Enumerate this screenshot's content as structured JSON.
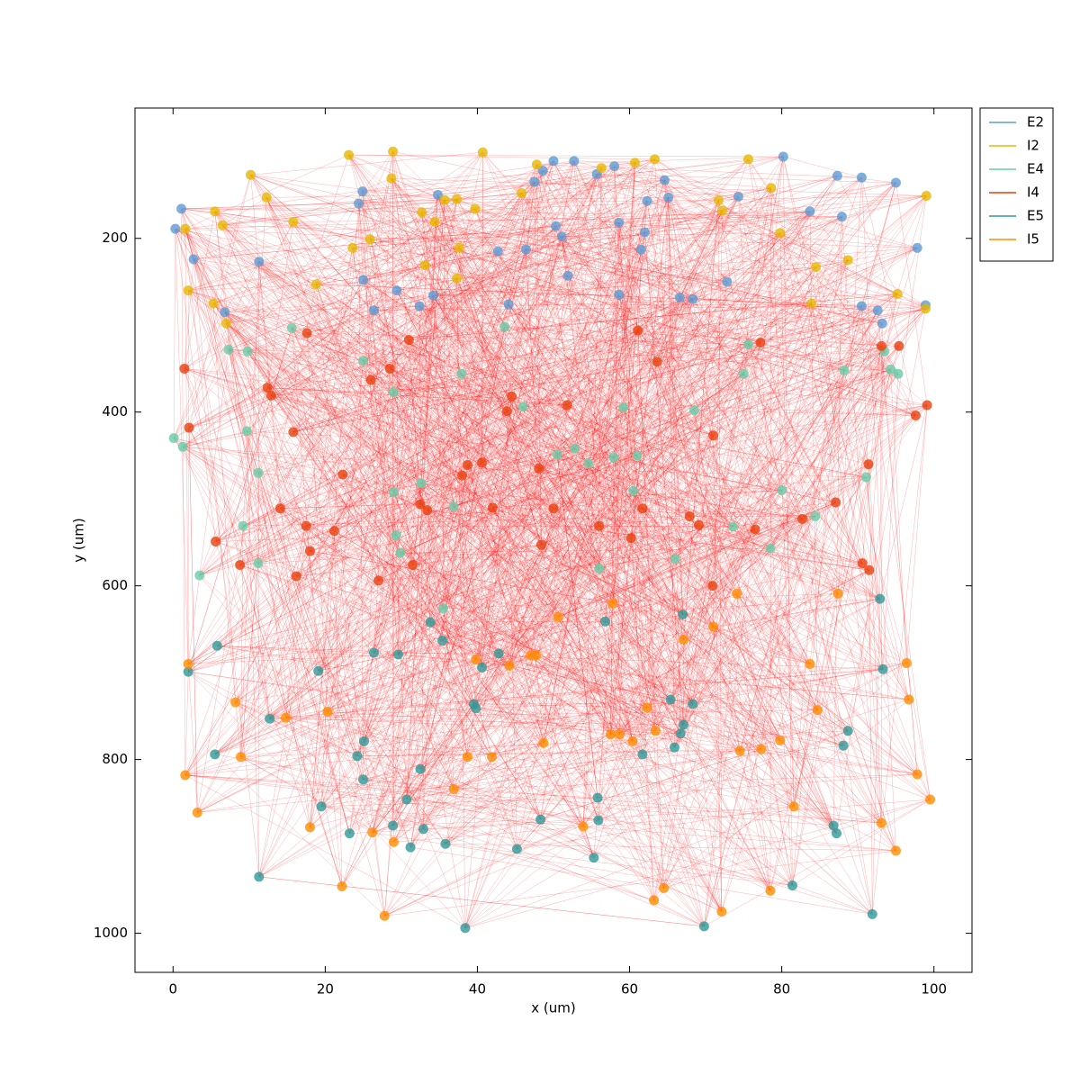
{
  "chart_data": {
    "type": "scatter",
    "xlabel": "x (um)",
    "ylabel": "y (um)",
    "xlim": [
      -5,
      105
    ],
    "ylim": [
      1045,
      50
    ],
    "xticks": [
      0,
      20,
      40,
      60,
      80,
      100
    ],
    "yticks": [
      200,
      400,
      600,
      800,
      1000
    ],
    "legend": "right",
    "connection_color": "#ff0000",
    "series": [
      {
        "name": "E2",
        "color": "#5b9bd5",
        "x": [
          0.3,
          1.1,
          2.7,
          6.8,
          11.3,
          24.9,
          24.4,
          25,
          26.4,
          29.4,
          32.4,
          34.2,
          34.8,
          42.7,
          44.1,
          46.4,
          47.5,
          48.6,
          50,
          50.3,
          51.1,
          51.9,
          52.7,
          55.7,
          58,
          58.6,
          58.6,
          61.5,
          62,
          62.3,
          64.6,
          65.1,
          66.6,
          68.3,
          72.8,
          74.3,
          80.2,
          83.7,
          87.3,
          87.9,
          90.5,
          90.5,
          92.6,
          93.2,
          95,
          97.8,
          98.9
        ],
        "values": [
          189,
          166,
          224,
          285,
          227,
          146,
          160,
          248,
          283,
          260,
          278,
          266,
          150,
          215,
          276,
          213,
          135,
          122,
          111,
          186,
          198,
          243,
          111,
          126,
          117,
          182,
          265,
          213,
          193,
          157,
          133,
          153,
          268,
          270,
          250,
          152,
          106,
          169,
          128,
          175,
          130,
          278,
          283,
          298,
          136,
          211,
          277
        ]
      },
      {
        "name": "I2",
        "color": "#e6b800",
        "x": [
          1.6,
          2,
          5.5,
          6.5,
          10.2,
          12.3,
          15.8,
          23.1,
          23.6,
          25.9,
          28.7,
          28.9,
          32.7,
          34.4,
          35.7,
          37.3,
          37.6,
          39.7,
          40.7,
          45.8,
          47.8,
          56.3,
          60.7,
          63.3,
          71.7,
          72.2,
          75.6,
          78.6,
          79.8,
          83.9,
          84.5,
          88.7,
          95.2,
          99,
          98.9,
          5.3,
          7,
          18.8,
          33.1,
          37.3
        ],
        "values": [
          189,
          260,
          169,
          185,
          127,
          153,
          181,
          104,
          211,
          201,
          131,
          100,
          170,
          181,
          156,
          155,
          211,
          166,
          101,
          148,
          115,
          119,
          113,
          109,
          156,
          168,
          109,
          142,
          194,
          275,
          233,
          225,
          264,
          151,
          281,
          275,
          298,
          253,
          231,
          246
        ]
      },
      {
        "name": "E4",
        "color": "#66cdaa",
        "x": [
          0.1,
          1.3,
          3.5,
          7.3,
          9.2,
          9.8,
          9.7,
          11.2,
          11.2,
          15.6,
          25,
          29,
          29,
          29.3,
          29.9,
          32.6,
          35.5,
          36.9,
          37.9,
          43.6,
          46,
          50.5,
          52.8,
          54.6,
          56,
          57.9,
          59.2,
          60.5,
          61,
          66,
          68.5,
          73.6,
          75,
          75.6,
          78.5,
          80,
          84.4,
          88.2,
          91.1,
          93.5,
          94.3,
          95.3
        ],
        "values": [
          430,
          440,
          588,
          328,
          531,
          330,
          422,
          470,
          574,
          303,
          341,
          377,
          492,
          542,
          562,
          482,
          626,
          509,
          356,
          302,
          394,
          449,
          442,
          459,
          580,
          452,
          395,
          491,
          450,
          569,
          398,
          532,
          356,
          322,
          557,
          490,
          520,
          352,
          475,
          330,
          351,
          356
        ]
      },
      {
        "name": "I4",
        "color": "#e8400c",
        "x": [
          1.5,
          2.1,
          5.6,
          8.8,
          12.4,
          12.9,
          14.1,
          15.8,
          16.2,
          17.5,
          17.6,
          18,
          21.2,
          22.3,
          26,
          27,
          28.5,
          31,
          31.5,
          32.5,
          33.4,
          38,
          38.7,
          40.6,
          42,
          43.9,
          44.5,
          48.1,
          48.4,
          50,
          51.8,
          56,
          60.2,
          61.1,
          61.7,
          63.6,
          67.9,
          69.1,
          70.9,
          71,
          76.5,
          77.2,
          82.7,
          87.1,
          90.6,
          91.5,
          91.4,
          93.1,
          95.4,
          97.6,
          99.1
        ],
        "values": [
          350,
          418,
          549,
          576,
          372,
          381,
          511,
          423,
          589,
          531,
          309,
          560,
          537,
          472,
          363,
          594,
          350,
          317,
          576,
          506,
          513,
          473,
          461,
          458,
          510,
          399,
          382,
          465,
          553,
          511,
          392,
          531,
          545,
          306,
          511,
          342,
          520,
          530,
          600,
          427,
          535,
          320,
          523,
          504,
          574,
          582,
          460,
          324,
          324,
          404,
          392
        ]
      },
      {
        "name": "E5",
        "color": "#2e9a9a",
        "x": [
          2,
          5.8,
          5.5,
          11.3,
          12.7,
          19.1,
          19.5,
          23.2,
          24.2,
          25.1,
          25,
          26.4,
          28.9,
          29.6,
          30.7,
          31.2,
          32.5,
          32.9,
          33.8,
          35.4,
          35.8,
          38.4,
          39.5,
          39.8,
          40.6,
          45.2,
          42.8,
          48.3,
          55.3,
          55.8,
          55.9,
          56.8,
          61.7,
          65.4,
          65.9,
          66.7,
          67.1,
          67,
          68.3,
          69.8,
          81.4,
          86.8,
          87.2,
          88.1,
          88.7,
          91.9,
          92.9,
          93.3
        ],
        "values": [
          699,
          669,
          794,
          935,
          753,
          698,
          854,
          885,
          796,
          779,
          823,
          677,
          876,
          679,
          846,
          901,
          811,
          880,
          642,
          663,
          897,
          994,
          736,
          741,
          694,
          903,
          678,
          869,
          913,
          844,
          870,
          641,
          794,
          731,
          786,
          770,
          760,
          633,
          736,
          992,
          945,
          876,
          885,
          784,
          767,
          978,
          615,
          696
        ]
      },
      {
        "name": "I5",
        "color": "#ff8c00",
        "x": [
          1.6,
          2,
          3.2,
          8.2,
          8.9,
          14.8,
          18,
          20.3,
          22.2,
          26.2,
          27.8,
          29,
          36.9,
          38.7,
          39.8,
          41.9,
          44.2,
          47,
          47.7,
          48.7,
          50.6,
          53.9,
          57.5,
          57.8,
          58.7,
          60.4,
          62.3,
          63.4,
          63.2,
          64.5,
          67.1,
          71,
          72.1,
          74.1,
          74.5,
          77.3,
          78.5,
          79.8,
          81.6,
          83.7,
          84.7,
          87.4,
          93.1,
          95,
          96.4,
          96.7,
          97.8,
          99.5
        ],
        "values": [
          818,
          690,
          861,
          734,
          797,
          752,
          878,
          745,
          946,
          884,
          980,
          895,
          834,
          797,
          685,
          797,
          692,
          680,
          680,
          781,
          636,
          877,
          771,
          620,
          771,
          779,
          740,
          767,
          962,
          948,
          662,
          647,
          975,
          609,
          790,
          788,
          951,
          778,
          854,
          690,
          743,
          609,
          873,
          905,
          689,
          731,
          817,
          846
        ]
      }
    ]
  }
}
